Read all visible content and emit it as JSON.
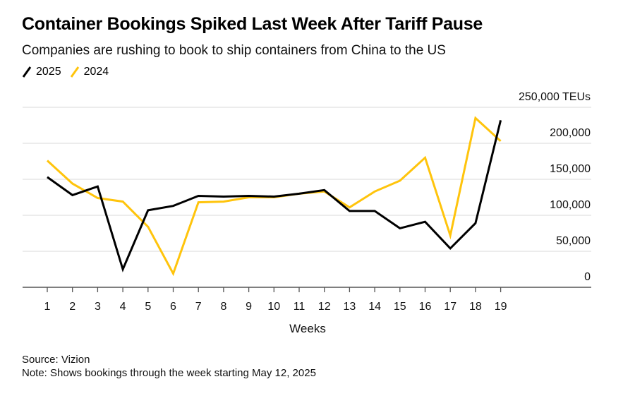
{
  "title": "Container Bookings Spiked Last Week After Tariff Pause",
  "subtitle": "Companies are rushing to book to ship containers from China to the US",
  "legend": [
    {
      "label": "2025",
      "color": "#000000"
    },
    {
      "label": "2024",
      "color": "#FFC40C"
    }
  ],
  "footer": {
    "source": "Source: Vizion",
    "note": "Note: Shows bookings through the week starting May 12, 2025"
  },
  "chart_data": {
    "type": "line",
    "title": "Container Bookings Spiked Last Week After Tariff Pause",
    "subtitle": "Companies are rushing to book to ship containers from China to the US",
    "xlabel": "Weeks",
    "ylabel": "",
    "y_unit_label": "250,000 TEUs",
    "ylim": [
      0,
      250000
    ],
    "yticks": [
      0,
      50000,
      100000,
      150000,
      200000,
      250000
    ],
    "ytick_labels": [
      "0",
      "50,000",
      "100,000",
      "150,000",
      "200,000",
      "250,000 TEUs"
    ],
    "x": [
      1,
      2,
      3,
      4,
      5,
      6,
      7,
      8,
      9,
      10,
      11,
      12,
      13,
      14,
      15,
      16,
      17,
      18,
      19
    ],
    "grid": true,
    "legend_position": "top-left",
    "series": [
      {
        "name": "2025",
        "color": "#000000",
        "values": [
          153000,
          128000,
          140000,
          25000,
          107000,
          113000,
          127000,
          126000,
          127000,
          126000,
          130000,
          135000,
          106000,
          106000,
          82000,
          91000,
          54000,
          89000,
          232000
        ]
      },
      {
        "name": "2024",
        "color": "#FFC40C",
        "values": [
          176000,
          144000,
          124000,
          119000,
          84000,
          19000,
          118000,
          119000,
          125000,
          125000,
          130000,
          133000,
          111000,
          133000,
          148000,
          180000,
          72000,
          235000,
          203000
        ]
      }
    ]
  }
}
